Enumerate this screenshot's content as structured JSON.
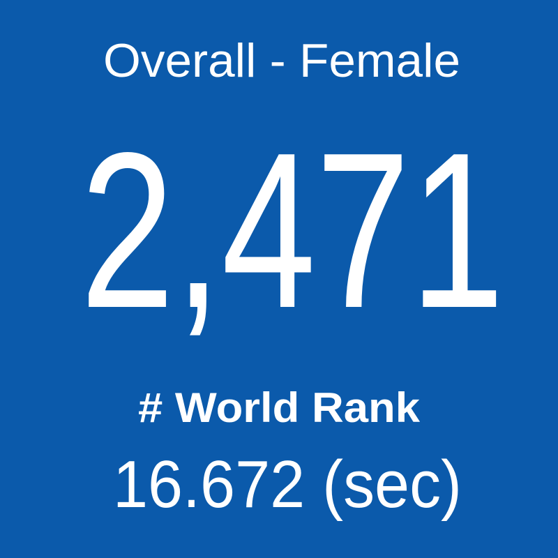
{
  "tile": {
    "title": "Overall - Female",
    "value": "2,471",
    "label": "# World Rank",
    "time": "16.672 (sec)"
  }
}
